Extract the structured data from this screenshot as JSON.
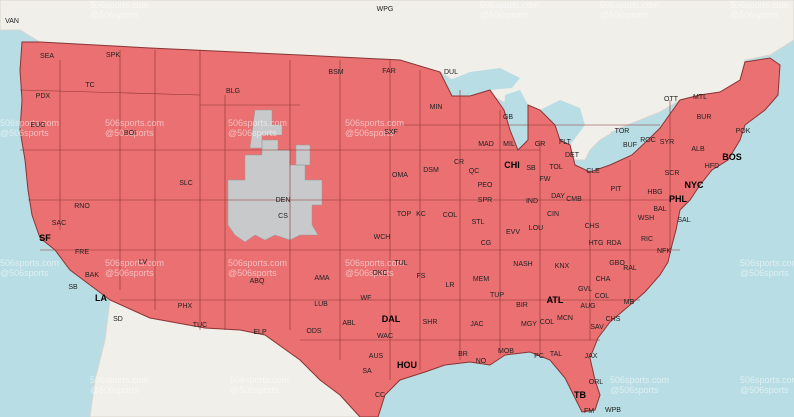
{
  "colors": {
    "water": "#b8dde4",
    "land_outside": "#f1efe9",
    "coverage": "#ea7071",
    "no_coverage": "#c7c9cb",
    "border": "#8a3434"
  },
  "watermark": {
    "line1": "506sports.com",
    "line2": "@506sports"
  },
  "neighbor_labels": [
    "WPG",
    "VAN",
    "OTT",
    "MTL"
  ],
  "markets": [
    "SEA",
    "SPK",
    "TC",
    "PDX",
    "EUG",
    "BOI",
    "BLG",
    "BSM",
    "FAR",
    "DUL",
    "MIN",
    "GB",
    "MAD",
    "MIL",
    "CHI",
    "GR",
    "FLT",
    "DET",
    "TOR",
    "BUF",
    "ROC",
    "SYR",
    "ALB",
    "BUR",
    "POK",
    "BOS",
    "HFD",
    "NYC",
    "SCR",
    "HBG",
    "PHL",
    "SLC",
    "DEN",
    "CS",
    "RNO",
    "SAC",
    "SF",
    "FRE",
    "BAK",
    "LV",
    "SB",
    "LA",
    "SD",
    "PHX",
    "TUC",
    "ABQ",
    "ELP",
    "AMA",
    "LUB",
    "ODS",
    "ABL",
    "WF",
    "DAL",
    "WAC",
    "AUS",
    "SA",
    "HOU",
    "CC",
    "OKC",
    "TUL",
    "WCH",
    "TOP",
    "KC",
    "COL",
    "OMA",
    "DSM",
    "CR",
    "QC",
    "PEO",
    "SPR",
    "STL",
    "CG",
    "SXF",
    "FS",
    "LR",
    "SHR",
    "MEM",
    "TUP",
    "JAC",
    "BR",
    "NO",
    "MOB",
    "PC",
    "TAL",
    "JAX",
    "ORL",
    "TB",
    "FM",
    "WPB",
    "BIR",
    "MGY",
    "COL",
    "MCN",
    "SAV",
    "ATL",
    "AUG",
    "CHS",
    "MB",
    "COL",
    "CHA",
    "KNX",
    "NASH",
    "GVL",
    "RAL",
    "GBO",
    "RDA",
    "RIC",
    "NFK",
    "WSH",
    "BAL",
    "CHS",
    "PIT",
    "CLE",
    "CMB",
    "IND",
    "FW",
    "SB",
    "LOU",
    "EVV",
    "HTG",
    "CIN",
    "DAY",
    "TOL",
    "SAL"
  ]
}
